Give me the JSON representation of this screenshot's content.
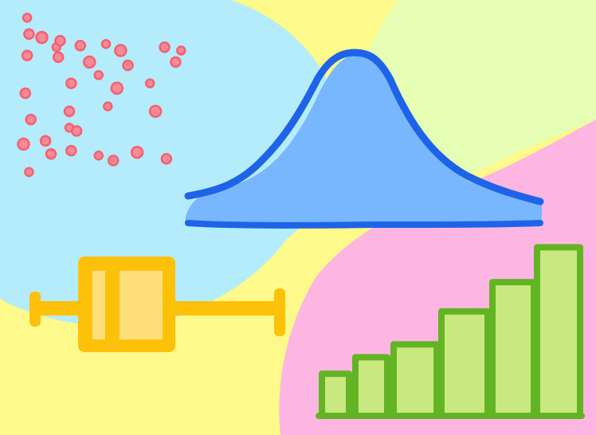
{
  "colors": {
    "background": "#fdf98a",
    "blob_blue": "#b4ecfb",
    "blob_green": "#e6fdb4",
    "blob_pink": "#fdb6e2",
    "scatter_dot_fill": "#fb8a98",
    "scatter_dot_stroke": "#f5606f",
    "bell_fill": "#78b7fd",
    "bell_stroke": "#1e63e8",
    "boxplot_fill": "#fec109",
    "boxplot_inner": "#fedf7a",
    "bar_fill": "#c9e880",
    "bar_stroke": "#63b424"
  },
  "icons": {
    "scatter": "scatter-plot-icon",
    "bell_curve": "bell-curve-icon",
    "box_plot": "box-plot-icon",
    "bar_chart": "bar-chart-icon"
  },
  "bar_heights_relative": [
    0.23,
    0.32,
    0.39,
    0.57,
    0.73,
    0.92
  ],
  "scatter_points": [
    [
      0.07,
      0.96
    ],
    [
      0.08,
      0.86
    ],
    [
      0.15,
      0.84
    ],
    [
      0.23,
      0.78
    ],
    [
      0.25,
      0.82
    ],
    [
      0.36,
      0.79
    ],
    [
      0.5,
      0.8
    ],
    [
      0.58,
      0.76
    ],
    [
      0.82,
      0.78
    ],
    [
      0.91,
      0.76
    ],
    [
      0.07,
      0.73
    ],
    [
      0.24,
      0.72
    ],
    [
      0.41,
      0.69
    ],
    [
      0.62,
      0.67
    ],
    [
      0.88,
      0.69
    ],
    [
      0.46,
      0.61
    ],
    [
      0.31,
      0.56
    ],
    [
      0.56,
      0.53
    ],
    [
      0.74,
      0.56
    ],
    [
      0.06,
      0.5
    ],
    [
      0.3,
      0.39
    ],
    [
      0.51,
      0.42
    ],
    [
      0.77,
      0.39
    ],
    [
      0.09,
      0.34
    ],
    [
      0.3,
      0.29
    ],
    [
      0.17,
      0.21
    ],
    [
      0.34,
      0.27
    ],
    [
      0.05,
      0.19
    ],
    [
      0.2,
      0.13
    ],
    [
      0.31,
      0.15
    ],
    [
      0.46,
      0.12
    ],
    [
      0.54,
      0.09
    ],
    [
      0.67,
      0.14
    ],
    [
      0.08,
      0.02
    ],
    [
      0.83,
      0.1
    ]
  ]
}
